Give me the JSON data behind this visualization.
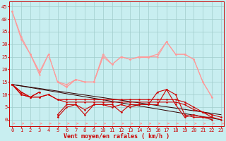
{
  "bg_color": "#c8eef0",
  "grid_color": "#a0cccc",
  "xlabel": "Vent moyen/en rafales ( km/h )",
  "xlabel_color": "#cc0000",
  "xlabel_fontsize": 6,
  "tick_color": "#cc0000",
  "tick_fontsize": 5,
  "ylim": [
    -2.5,
    47
  ],
  "xlim": [
    -0.3,
    23.3
  ],
  "yticks": [
    0,
    5,
    10,
    15,
    20,
    25,
    30,
    35,
    40,
    45
  ],
  "xticks": [
    0,
    1,
    2,
    3,
    4,
    5,
    6,
    7,
    8,
    9,
    10,
    11,
    12,
    13,
    14,
    15,
    16,
    17,
    18,
    19,
    20,
    21,
    22,
    23
  ],
  "light_color": "#ff9999",
  "dark_color": "#cc0000",
  "black_color": "#330000",
  "marker_size": 1.8,
  "line_width": 0.8,
  "light_lines": [
    [
      43,
      32,
      26,
      19,
      26,
      15,
      13,
      16,
      15,
      15,
      26,
      22,
      25,
      24,
      25,
      25,
      25,
      31,
      26,
      26,
      24,
      15,
      9,
      null
    ],
    [
      43,
      33,
      26,
      18,
      26,
      15,
      14,
      16,
      15,
      15,
      25,
      22,
      25,
      24,
      25,
      25,
      26,
      31,
      26,
      26,
      24,
      15,
      9,
      null
    ],
    [
      null,
      null,
      26,
      19,
      null,
      15,
      13,
      16,
      null,
      15,
      25,
      null,
      25,
      null,
      25,
      25,
      null,
      31,
      null,
      26,
      null,
      null,
      null,
      null
    ]
  ],
  "dark_lines": [
    [
      14,
      11,
      9,
      11,
      null,
      1,
      5,
      6,
      2,
      6,
      6,
      6,
      3,
      6,
      6,
      6,
      11,
      12,
      6,
      1,
      2,
      1,
      0,
      null
    ],
    [
      14,
      11,
      9,
      11,
      null,
      2,
      6,
      6,
      4,
      6,
      6,
      5,
      6,
      5,
      6,
      6,
      6,
      12,
      10,
      2,
      1,
      1,
      1,
      null
    ],
    [
      14,
      10,
      9,
      9,
      10,
      8,
      8,
      8,
      8,
      8,
      8,
      8,
      8,
      8,
      8,
      8,
      8,
      8,
      8,
      7,
      5,
      3,
      2,
      1
    ],
    [
      14,
      10,
      9,
      9,
      10,
      8,
      7,
      7,
      7,
      7,
      7,
      7,
      7,
      7,
      7,
      7,
      7,
      7,
      7,
      6,
      4,
      3,
      1,
      0
    ]
  ],
  "straight_lines": [
    {
      "x0": 0,
      "y0": 14,
      "x1": 23,
      "y1": 0
    },
    {
      "x0": 0,
      "y0": 14,
      "x1": 23,
      "y1": 2
    }
  ]
}
